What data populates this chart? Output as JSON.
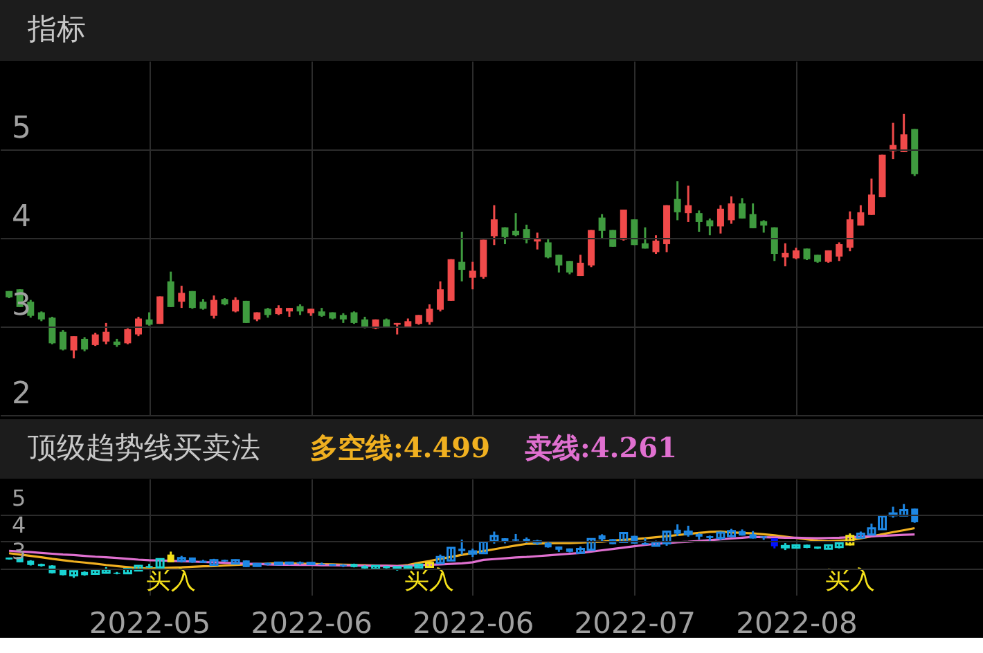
{
  "chart_data": [
    {
      "type": "candlestick",
      "title": "指标",
      "categories": [
        null,
        null,
        null,
        null,
        null,
        null,
        null,
        null,
        null,
        null,
        null,
        null,
        null,
        "2022-05",
        null,
        null,
        null,
        null,
        null,
        null,
        null,
        null,
        null,
        null,
        null,
        null,
        null,
        null,
        "2022-06",
        null,
        null,
        null,
        null,
        null,
        null,
        null,
        null,
        null,
        null,
        null,
        null,
        null,
        null,
        "2022-06",
        null,
        null,
        null,
        null,
        null,
        null,
        null,
        null,
        null,
        null,
        null,
        null,
        null,
        null,
        "2022-07",
        null,
        null,
        null,
        null,
        null,
        null,
        null,
        null,
        null,
        null,
        null,
        null,
        null,
        null,
        "2022-08",
        null,
        null,
        null,
        null,
        null,
        null,
        null,
        null,
        null,
        null,
        null
      ],
      "ohlc": [
        [
          3.4,
          3.4,
          3.32,
          3.33
        ],
        [
          3.42,
          3.42,
          3.22,
          3.22
        ],
        [
          3.28,
          3.3,
          3.1,
          3.12
        ],
        [
          3.16,
          3.17,
          3.06,
          3.08
        ],
        [
          3.1,
          3.11,
          2.8,
          2.81
        ],
        [
          2.94,
          2.96,
          2.73,
          2.74
        ],
        [
          2.73,
          2.89,
          2.64,
          2.89
        ],
        [
          2.86,
          2.88,
          2.72,
          2.74
        ],
        [
          2.79,
          2.93,
          2.78,
          2.91
        ],
        [
          2.83,
          3.04,
          2.8,
          2.94
        ],
        [
          2.83,
          2.86,
          2.77,
          2.79
        ],
        [
          2.81,
          2.98,
          2.8,
          2.97
        ],
        [
          2.91,
          3.11,
          2.89,
          3.09
        ],
        [
          3.08,
          3.16,
          3.01,
          3.02
        ],
        [
          3.03,
          3.34,
          3.03,
          3.34
        ],
        [
          3.51,
          3.62,
          3.22,
          3.22
        ],
        [
          3.28,
          3.46,
          3.21,
          3.38
        ],
        [
          3.4,
          3.4,
          3.2,
          3.21
        ],
        [
          3.28,
          3.31,
          3.19,
          3.2
        ],
        [
          3.12,
          3.35,
          3.09,
          3.3
        ],
        [
          3.31,
          3.32,
          3.24,
          3.25
        ],
        [
          3.17,
          3.33,
          3.16,
          3.3
        ],
        [
          3.29,
          3.29,
          3.04,
          3.04
        ],
        [
          3.08,
          3.16,
          3.06,
          3.16
        ],
        [
          3.2,
          3.21,
          3.1,
          3.13
        ],
        [
          3.14,
          3.24,
          3.13,
          3.21
        ],
        [
          3.17,
          3.21,
          3.11,
          3.21
        ],
        [
          3.23,
          3.25,
          3.13,
          3.17
        ],
        [
          3.15,
          3.2,
          3.12,
          3.2
        ],
        [
          3.17,
          3.21,
          3.11,
          3.12
        ],
        [
          3.16,
          3.16,
          3.08,
          3.09
        ],
        [
          3.13,
          3.15,
          3.04,
          3.08
        ],
        [
          3.16,
          3.17,
          3.03,
          3.04
        ],
        [
          3.08,
          3.11,
          2.98,
          2.99
        ],
        [
          2.98,
          3.08,
          2.97,
          3.08
        ],
        [
          3.08,
          3.09,
          2.99,
          3.0
        ],
        [
          3.02,
          3.04,
          2.91,
          3.04
        ],
        [
          3.0,
          3.09,
          2.99,
          3.06
        ],
        [
          3.03,
          3.13,
          3.02,
          3.13
        ],
        [
          3.05,
          3.25,
          3.02,
          3.2
        ],
        [
          3.19,
          3.51,
          3.17,
          3.42
        ],
        [
          3.29,
          3.76,
          3.29,
          3.76
        ],
        [
          3.73,
          4.07,
          3.51,
          3.64
        ],
        [
          3.55,
          3.73,
          3.42,
          3.63
        ],
        [
          3.56,
          3.98,
          3.54,
          3.98
        ],
        [
          4.02,
          4.37,
          3.92,
          4.21
        ],
        [
          4.12,
          4.12,
          3.93,
          4.01
        ],
        [
          4.08,
          4.28,
          4.02,
          4.03
        ],
        [
          4.1,
          4.15,
          3.94,
          3.98
        ],
        [
          3.96,
          4.06,
          3.87,
          4.0
        ],
        [
          3.95,
          3.99,
          3.77,
          3.78
        ],
        [
          3.81,
          3.81,
          3.61,
          3.69
        ],
        [
          3.74,
          3.74,
          3.59,
          3.61
        ],
        [
          3.57,
          3.81,
          3.57,
          3.72
        ],
        [
          3.69,
          4.09,
          3.67,
          4.09
        ],
        [
          4.23,
          4.27,
          4.0,
          4.08
        ],
        [
          4.09,
          4.09,
          3.9,
          3.9
        ],
        [
          3.98,
          4.32,
          3.97,
          4.32
        ],
        [
          4.21,
          4.21,
          3.92,
          3.92
        ],
        [
          3.94,
          4.12,
          3.88,
          3.88
        ],
        [
          3.84,
          4.03,
          3.82,
          3.97
        ],
        [
          3.93,
          4.37,
          3.84,
          4.37
        ],
        [
          4.44,
          4.64,
          4.2,
          4.29
        ],
        [
          4.28,
          4.59,
          4.18,
          4.37
        ],
        [
          4.28,
          4.31,
          4.07,
          4.18
        ],
        [
          4.2,
          4.22,
          4.03,
          4.13
        ],
        [
          4.13,
          4.37,
          4.05,
          4.33
        ],
        [
          4.2,
          4.47,
          4.16,
          4.39
        ],
        [
          4.39,
          4.45,
          4.22,
          4.22
        ],
        [
          4.27,
          4.39,
          4.11,
          4.11
        ],
        [
          4.19,
          4.2,
          4.06,
          4.14
        ],
        [
          4.12,
          4.12,
          3.74,
          3.82
        ],
        [
          3.78,
          3.94,
          3.68,
          3.83
        ],
        [
          3.77,
          3.89,
          3.76,
          3.86
        ],
        [
          3.88,
          3.88,
          3.75,
          3.76
        ],
        [
          3.81,
          3.81,
          3.72,
          3.73
        ],
        [
          3.73,
          3.86,
          3.72,
          3.86
        ],
        [
          3.79,
          3.95,
          3.74,
          3.93
        ],
        [
          3.89,
          4.3,
          3.85,
          4.21
        ],
        [
          4.14,
          4.37,
          4.14,
          4.29
        ],
        [
          4.26,
          4.67,
          4.26,
          4.49
        ],
        [
          4.46,
          4.94,
          4.46,
          4.94
        ],
        [
          4.98,
          5.3,
          4.89,
          5.05
        ],
        [
          4.97,
          5.4,
          4.97,
          5.17
        ],
        [
          5.23,
          5.23,
          4.7,
          4.72
        ]
      ],
      "colors": [
        "#3f9b3f",
        "#3f9b3f",
        "#3f9b3f",
        "#3f9b3f",
        "#3f9b3f",
        "#3f9b3f",
        "#f04a4a",
        "#3f9b3f",
        "#f04a4a",
        "#f04a4a",
        "#3f9b3f",
        "#f04a4a",
        "#f04a4a",
        "#3f9b3f",
        "#f04a4a",
        "#3f9b3f",
        "#f04a4a",
        "#3f9b3f",
        "#3f9b3f",
        "#f04a4a",
        "#3f9b3f",
        "#f04a4a",
        "#3f9b3f",
        "#f04a4a",
        "#3f9b3f",
        "#f04a4a",
        "#f04a4a",
        "#3f9b3f",
        "#f04a4a",
        "#3f9b3f",
        "#3f9b3f",
        "#3f9b3f",
        "#3f9b3f",
        "#3f9b3f",
        "#f04a4a",
        "#3f9b3f",
        "#f04a4a",
        "#f04a4a",
        "#f04a4a",
        "#f04a4a",
        "#f04a4a",
        "#f04a4a",
        "#3f9b3f",
        "#f04a4a",
        "#f04a4a",
        "#f04a4a",
        "#3f9b3f",
        "#3f9b3f",
        "#3f9b3f",
        "#f04a4a",
        "#3f9b3f",
        "#3f9b3f",
        "#3f9b3f",
        "#f04a4a",
        "#f04a4a",
        "#3f9b3f",
        "#3f9b3f",
        "#f04a4a",
        "#3f9b3f",
        "#3f9b3f",
        "#f04a4a",
        "#f04a4a",
        "#3f9b3f",
        "#f04a4a",
        "#3f9b3f",
        "#3f9b3f",
        "#f04a4a",
        "#f04a4a",
        "#3f9b3f",
        "#3f9b3f",
        "#3f9b3f",
        "#3f9b3f",
        "#f04a4a",
        "#f04a4a",
        "#3f9b3f",
        "#3f9b3f",
        "#f04a4a",
        "#f04a4a",
        "#f04a4a",
        "#f04a4a",
        "#f04a4a",
        "#f04a4a",
        "#f04a4a",
        "#f04a4a",
        "#3f9b3f"
      ],
      "ylim": [
        2,
        6
      ],
      "yticks": [
        2,
        3,
        4,
        5
      ],
      "grid": true,
      "tick_labels": "y"
    },
    {
      "type": "candlestick",
      "title": "顶级趋势线买卖法",
      "categories": [
        null,
        null,
        null,
        null,
        null,
        null,
        null,
        null,
        null,
        null,
        null,
        null,
        null,
        "2022-05",
        null,
        null,
        null,
        null,
        null,
        null,
        null,
        null,
        null,
        null,
        null,
        null,
        null,
        null,
        "2022-06",
        null,
        null,
        null,
        null,
        null,
        null,
        null,
        null,
        null,
        null,
        null,
        null,
        null,
        null,
        "2022-06",
        null,
        null,
        null,
        null,
        null,
        null,
        null,
        null,
        null,
        null,
        null,
        null,
        null,
        null,
        "2022-07",
        null,
        null,
        null,
        null,
        null,
        null,
        null,
        null,
        null,
        null,
        null,
        null,
        null,
        null,
        "2022-08",
        null,
        null,
        null,
        null,
        null,
        null,
        null,
        null,
        null,
        null,
        null
      ],
      "ohlc": [
        [
          3.4,
          3.4,
          3.32,
          3.33
        ],
        [
          3.42,
          3.42,
          3.22,
          3.22
        ],
        [
          3.28,
          3.3,
          3.1,
          3.12
        ],
        [
          3.16,
          3.17,
          3.06,
          3.08
        ],
        [
          3.1,
          3.11,
          2.8,
          2.81
        ],
        [
          2.94,
          2.96,
          2.73,
          2.74
        ],
        [
          2.73,
          2.89,
          2.64,
          2.89
        ],
        [
          2.86,
          2.88,
          2.72,
          2.74
        ],
        [
          2.79,
          2.93,
          2.78,
          2.91
        ],
        [
          2.83,
          3.04,
          2.8,
          2.94
        ],
        [
          2.83,
          2.86,
          2.77,
          2.79
        ],
        [
          2.81,
          2.98,
          2.8,
          2.97
        ],
        [
          2.91,
          3.11,
          2.89,
          3.09
        ],
        [
          3.08,
          3.16,
          3.01,
          3.02
        ],
        [
          3.03,
          3.34,
          3.03,
          3.34
        ],
        [
          3.51,
          3.62,
          3.22,
          3.22
        ],
        [
          3.28,
          3.46,
          3.21,
          3.38
        ],
        [
          3.4,
          3.4,
          3.2,
          3.21
        ],
        [
          3.28,
          3.31,
          3.19,
          3.2
        ],
        [
          3.12,
          3.35,
          3.09,
          3.3
        ],
        [
          3.31,
          3.32,
          3.24,
          3.25
        ],
        [
          3.17,
          3.33,
          3.16,
          3.3
        ],
        [
          3.29,
          3.29,
          3.04,
          3.04
        ],
        [
          3.08,
          3.16,
          3.06,
          3.16
        ],
        [
          3.2,
          3.21,
          3.1,
          3.13
        ],
        [
          3.14,
          3.24,
          3.13,
          3.21
        ],
        [
          3.17,
          3.21,
          3.11,
          3.21
        ],
        [
          3.23,
          3.25,
          3.13,
          3.17
        ],
        [
          3.15,
          3.2,
          3.12,
          3.2
        ],
        [
          3.17,
          3.21,
          3.11,
          3.12
        ],
        [
          3.16,
          3.16,
          3.08,
          3.09
        ],
        [
          3.13,
          3.15,
          3.04,
          3.08
        ],
        [
          3.16,
          3.17,
          3.03,
          3.04
        ],
        [
          3.08,
          3.11,
          2.98,
          2.99
        ],
        [
          2.98,
          3.08,
          2.97,
          3.08
        ],
        [
          3.08,
          3.09,
          2.99,
          3.0
        ],
        [
          3.02,
          3.04,
          2.91,
          3.04
        ],
        [
          3.0,
          3.09,
          2.99,
          3.06
        ],
        [
          3.03,
          3.13,
          3.02,
          3.13
        ],
        [
          3.05,
          3.25,
          3.02,
          3.2
        ],
        [
          3.19,
          3.51,
          3.17,
          3.42
        ],
        [
          3.29,
          3.76,
          3.29,
          3.76
        ],
        [
          3.73,
          4.07,
          3.51,
          3.64
        ],
        [
          3.55,
          3.73,
          3.42,
          3.63
        ],
        [
          3.56,
          3.98,
          3.54,
          3.98
        ],
        [
          4.02,
          4.37,
          3.92,
          4.21
        ],
        [
          4.12,
          4.12,
          3.93,
          4.01
        ],
        [
          4.08,
          4.28,
          4.02,
          4.03
        ],
        [
          4.1,
          4.15,
          3.94,
          3.98
        ],
        [
          3.96,
          4.06,
          3.87,
          4.0
        ],
        [
          3.95,
          3.99,
          3.77,
          3.78
        ],
        [
          3.81,
          3.81,
          3.61,
          3.69
        ],
        [
          3.74,
          3.74,
          3.59,
          3.61
        ],
        [
          3.57,
          3.81,
          3.57,
          3.72
        ],
        [
          3.69,
          4.09,
          3.67,
          4.09
        ],
        [
          4.23,
          4.27,
          4.0,
          4.08
        ],
        [
          4.09,
          4.09,
          3.9,
          3.9
        ],
        [
          3.98,
          4.32,
          3.97,
          4.32
        ],
        [
          4.21,
          4.21,
          3.92,
          3.92
        ],
        [
          3.94,
          4.12,
          3.88,
          3.88
        ],
        [
          3.84,
          4.03,
          3.82,
          3.97
        ],
        [
          3.93,
          4.37,
          3.84,
          4.37
        ],
        [
          4.44,
          4.64,
          4.2,
          4.29
        ],
        [
          4.28,
          4.59,
          4.18,
          4.37
        ],
        [
          4.28,
          4.31,
          4.07,
          4.18
        ],
        [
          4.2,
          4.22,
          4.03,
          4.13
        ],
        [
          4.13,
          4.37,
          4.05,
          4.33
        ],
        [
          4.2,
          4.47,
          4.16,
          4.39
        ],
        [
          4.39,
          4.45,
          4.22,
          4.22
        ],
        [
          4.27,
          4.39,
          4.11,
          4.11
        ],
        [
          4.19,
          4.2,
          4.06,
          4.14
        ],
        [
          4.12,
          4.12,
          3.74,
          3.82
        ],
        [
          3.78,
          3.94,
          3.68,
          3.83
        ],
        [
          3.77,
          3.89,
          3.76,
          3.86
        ],
        [
          3.88,
          3.88,
          3.75,
          3.76
        ],
        [
          3.81,
          3.81,
          3.72,
          3.73
        ],
        [
          3.73,
          3.86,
          3.72,
          3.86
        ],
        [
          3.79,
          3.95,
          3.74,
          3.93
        ],
        [
          3.89,
          4.3,
          3.85,
          4.21
        ],
        [
          4.14,
          4.37,
          4.14,
          4.29
        ],
        [
          4.26,
          4.67,
          4.26,
          4.49
        ],
        [
          4.46,
          4.94,
          4.46,
          4.94
        ],
        [
          4.98,
          5.3,
          4.89,
          5.05
        ],
        [
          4.97,
          5.4,
          4.97,
          5.17
        ],
        [
          5.23,
          5.23,
          4.7,
          4.72
        ]
      ],
      "colors": [
        "#19d3d3",
        "#19d3d3",
        "#19d3d3",
        "#19d3d3",
        "#19d3d3",
        "#19d3d3",
        "#19d3d3",
        "#19d3d3",
        "#19d3d3",
        "#19d3d3",
        "#19d3d3",
        "#19d3d3",
        "#19d3d3",
        "#19d3d3",
        "#19d3d3",
        "#f5e11a",
        "#1e88e5",
        "#1e88e5",
        "#1e88e5",
        "#1e88e5",
        "#1e88e5",
        "#1e88e5",
        "#1e88e5",
        "#1e88e5",
        "#1e88e5",
        "#1e88e5",
        "#1e88e5",
        "#1e88e5",
        "#1e88e5",
        "#1e88e5",
        "#1e88e5",
        "#1e88e5",
        "#19d3d3",
        "#19d3d3",
        "#19d3d3",
        "#19d3d3",
        "#19d3d3",
        "#19d3d3",
        "#19d3d3",
        "#f5e11a",
        "#1e88e5",
        "#1e88e5",
        "#1e88e5",
        "#1e88e5",
        "#1e88e5",
        "#1e88e5",
        "#1e88e5",
        "#1e88e5",
        "#1e88e5",
        "#1e88e5",
        "#1e88e5",
        "#1e88e5",
        "#1e88e5",
        "#1e88e5",
        "#1e88e5",
        "#1e88e5",
        "#1e88e5",
        "#1e88e5",
        "#1e88e5",
        "#1e88e5",
        "#1e88e5",
        "#1e88e5",
        "#1e88e5",
        "#1e88e5",
        "#1e88e5",
        "#1e88e5",
        "#1e88e5",
        "#1e88e5",
        "#1e88e5",
        "#1e88e5",
        "#1e88e5",
        "#0010ff",
        "#19d3d3",
        "#19d3d3",
        "#19d3d3",
        "#19d3d3",
        "#19d3d3",
        "#19d3d3",
        "#f5e11a",
        "#1e88e5",
        "#1e88e5",
        "#1e88e5",
        "#1e88e5",
        "#1e88e5",
        "#1e88e5"
      ],
      "series": [
        {
          "name": "多空线:4.499",
          "type": "line",
          "color": "#f0b020",
          "values": [
            3.56,
            3.51,
            3.46,
            3.41,
            3.35,
            3.3,
            3.25,
            3.21,
            3.17,
            3.12,
            3.08,
            3.04,
            3.0,
            2.99,
            3.0,
            3.02,
            3.03,
            3.05,
            3.07,
            3.08,
            3.1,
            3.12,
            3.14,
            3.15,
            3.17,
            3.19,
            3.18,
            3.17,
            3.16,
            3.15,
            3.14,
            3.13,
            3.12,
            3.11,
            3.1,
            3.09,
            3.08,
            3.12,
            3.2,
            3.27,
            3.35,
            3.42,
            3.5,
            3.57,
            3.64,
            3.71,
            3.78,
            3.85,
            3.91,
            3.92,
            3.93,
            3.94,
            3.94,
            3.96,
            3.98,
            3.99,
            4.03,
            4.06,
            4.09,
            4.12,
            4.16,
            4.2,
            4.24,
            4.28,
            4.32,
            4.36,
            4.37,
            4.34,
            4.32,
            4.3,
            4.27,
            4.23,
            4.18,
            4.13,
            4.08,
            4.03,
            4.01,
            4.03,
            4.05,
            4.12,
            4.19,
            4.27,
            4.35,
            4.42,
            4.499
          ]
        },
        {
          "name": "卖线:4.261",
          "type": "line",
          "color": "#e070d0",
          "values": [
            3.65,
            3.62,
            3.6,
            3.57,
            3.54,
            3.51,
            3.49,
            3.46,
            3.43,
            3.41,
            3.38,
            3.35,
            3.32,
            3.3,
            3.29,
            3.27,
            3.26,
            3.25,
            3.23,
            3.22,
            3.2,
            3.19,
            3.17,
            3.16,
            3.14,
            3.13,
            3.13,
            3.12,
            3.12,
            3.11,
            3.11,
            3.1,
            3.1,
            3.09,
            3.09,
            3.09,
            3.08,
            3.09,
            3.11,
            3.13,
            3.14,
            3.16,
            3.18,
            3.22,
            3.31,
            3.34,
            3.37,
            3.4,
            3.42,
            3.45,
            3.48,
            3.51,
            3.54,
            3.57,
            3.62,
            3.67,
            3.72,
            3.77,
            3.82,
            3.87,
            3.91,
            3.94,
            3.97,
            3.99,
            4.02,
            4.05,
            4.08,
            4.11,
            4.14,
            4.17,
            4.16,
            4.15,
            4.14,
            4.14,
            4.13,
            4.12,
            4.13,
            4.14,
            4.16,
            4.18,
            4.19,
            4.21,
            4.23,
            4.25,
            4.261
          ]
        }
      ],
      "annotations": [
        "买入",
        "买入",
        "买入"
      ],
      "legend": "top",
      "line_style": "solid",
      "ylim": [
        2,
        6.35
      ],
      "yticks": [
        3,
        4,
        5
      ],
      "grid": true
    }
  ]
}
